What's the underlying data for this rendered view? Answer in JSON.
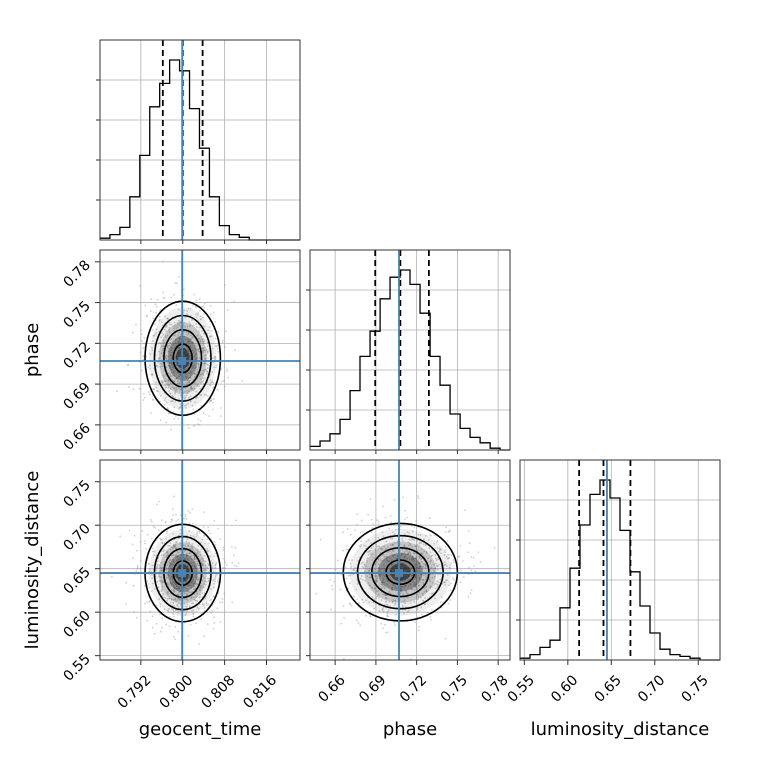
{
  "chart_data": {
    "type": "corner",
    "parameters": [
      {
        "name": "geocent_time",
        "ticks": [
          0.792,
          0.8,
          0.808,
          0.816
        ],
        "tick_labels": [
          "0.792",
          "0.800",
          "0.808",
          "0.816"
        ],
        "range": [
          0.7842,
          0.8224
        ]
      },
      {
        "name": "phase",
        "ticks": [
          0.66,
          0.69,
          0.72,
          0.75,
          0.78
        ],
        "tick_labels": [
          "0.66",
          "0.69",
          "0.72",
          "0.75",
          "0.78"
        ],
        "range": [
          0.6415,
          0.7887
        ]
      },
      {
        "name": "luminosity_distance",
        "ticks": [
          0.55,
          0.6,
          0.65,
          0.7,
          0.75
        ],
        "tick_labels": [
          "0.55",
          "0.60",
          "0.65",
          "0.70",
          "0.75"
        ],
        "range": [
          0.545,
          0.775
        ]
      }
    ],
    "histograms": [
      {
        "parameter": "geocent_time",
        "bin_edges": [
          0.7842,
          0.7861,
          0.788,
          0.7899,
          0.7918,
          0.7937,
          0.7956,
          0.7975,
          0.7994,
          0.8013,
          0.8032,
          0.8051,
          0.807,
          0.8089,
          0.8108,
          0.8127,
          0.8146,
          0.8165,
          0.8184,
          0.8203,
          0.8224
        ],
        "counts": [
          0.01,
          0.03,
          0.07,
          0.24,
          0.47,
          0.74,
          0.87,
          1.0,
          0.94,
          0.73,
          0.51,
          0.24,
          0.08,
          0.03,
          0.015,
          0.0,
          0.0,
          0.0,
          0.0,
          0.0
        ],
        "quantiles": [
          0.7962,
          0.8,
          0.8038
        ],
        "truth": 0.7999
      },
      {
        "parameter": "phase",
        "bin_edges": [
          0.6415,
          0.6489,
          0.6562,
          0.6636,
          0.671,
          0.6783,
          0.6857,
          0.6931,
          0.7004,
          0.7078,
          0.7151,
          0.7225,
          0.7299,
          0.7372,
          0.7446,
          0.752,
          0.7593,
          0.7667,
          0.7741,
          0.7814,
          0.7887
        ],
        "counts": [
          0.02,
          0.05,
          0.09,
          0.17,
          0.33,
          0.52,
          0.66,
          0.84,
          0.96,
          1.0,
          0.92,
          0.76,
          0.52,
          0.36,
          0.2,
          0.12,
          0.07,
          0.04,
          0.01,
          0.0
        ],
        "quantiles": [
          0.6895,
          0.708,
          0.729
        ],
        "truth": 0.707
      },
      {
        "parameter": "luminosity_distance",
        "bin_edges": [
          0.545,
          0.5565,
          0.568,
          0.5795,
          0.591,
          0.6025,
          0.614,
          0.6255,
          0.637,
          0.6485,
          0.66,
          0.6715,
          0.683,
          0.6945,
          0.706,
          0.7175,
          0.729,
          0.7405,
          0.752,
          0.7635,
          0.775
        ],
        "counts": [
          0.01,
          0.03,
          0.07,
          0.11,
          0.29,
          0.51,
          0.75,
          0.92,
          1.0,
          0.9,
          0.72,
          0.49,
          0.3,
          0.15,
          0.06,
          0.03,
          0.02,
          0.01,
          0.0,
          0.0
        ],
        "quantiles": [
          0.613,
          0.641,
          0.672
        ],
        "truth": 0.645
      }
    ],
    "joint_panels": [
      {
        "x": "geocent_time",
        "y": "phase",
        "mean": [
          0.8,
          0.709
        ],
        "std": [
          0.0036,
          0.021
        ]
      },
      {
        "x": "geocent_time",
        "y": "luminosity_distance",
        "mean": [
          0.8,
          0.645
        ],
        "std": [
          0.0036,
          0.028
        ]
      },
      {
        "x": "phase",
        "y": "luminosity_distance",
        "mean": [
          0.708,
          0.646
        ],
        "std": [
          0.021,
          0.028
        ]
      }
    ],
    "truths": {
      "geocent_time": 0.7999,
      "phase": 0.707,
      "luminosity_distance": 0.645
    },
    "grid": true,
    "colors": {
      "truth": "#4682b4",
      "contour": "#000000",
      "samples": "#9a9a9a"
    }
  }
}
